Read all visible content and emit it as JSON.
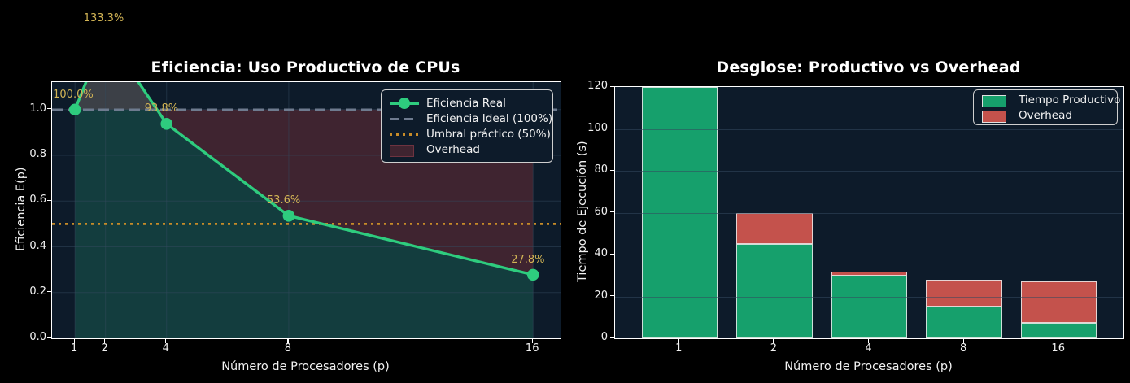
{
  "figure": {
    "bg_color": "#000000",
    "axes_bg_color": "#0d1b2a",
    "spine_color": "#ffffff",
    "grid_color": "rgba(52,73,94,0.5)",
    "annotation_color": "#d2b455"
  },
  "left_chart": {
    "title": "Eficiencia: Uso Productivo de CPUs",
    "xlabel": "Número de Procesadores (p)",
    "ylabel": "Eficiencia E(p)",
    "x_tick_labels": [
      "1",
      "2",
      "4",
      "8",
      "16"
    ],
    "y_tick_labels": [
      "0.0",
      "0.2",
      "0.4",
      "0.6",
      "0.8",
      "1.0"
    ],
    "legend_items": [
      {
        "label": "Eficiencia Real",
        "type": "line-marker",
        "color": "#2ecc7e"
      },
      {
        "label": "Eficiencia Ideal (100%)",
        "type": "dashed",
        "color": "#6e7b8f"
      },
      {
        "label": "Umbral práctico (50%)",
        "type": "dotted",
        "color": "#c88c28"
      },
      {
        "label": "Overhead",
        "type": "patch",
        "color": "#3f2430"
      }
    ]
  },
  "right_chart": {
    "title": "Desglose: Productivo vs Overhead",
    "xlabel": "Número de Procesadores (p)",
    "ylabel": "Tiempo de Ejecución (s)",
    "x_tick_labels": [
      "1",
      "2",
      "4",
      "8",
      "16"
    ],
    "y_tick_labels": [
      "0",
      "20",
      "40",
      "60",
      "80",
      "100",
      "120"
    ],
    "legend_items": [
      {
        "label": "Tiempo Productivo",
        "type": "patch",
        "color": "#16a06c"
      },
      {
        "label": "Overhead",
        "type": "patch",
        "color": "#c4524c"
      }
    ]
  },
  "chart_data": [
    {
      "type": "line",
      "title": "Eficiencia: Uso Productivo de CPUs",
      "xlabel": "Número de Procesadores (p)",
      "ylabel": "Eficiencia E(p)",
      "x": [
        1,
        2,
        4,
        8,
        16
      ],
      "series": [
        {
          "name": "Eficiencia Real",
          "values": [
            1.0,
            1.3333,
            0.9375,
            0.5357,
            0.2778
          ],
          "color": "#2ecc7e",
          "marker": "circle"
        }
      ],
      "point_labels": [
        "100.0%",
        "133.3%",
        "93.8%",
        "53.6%",
        "27.8%"
      ],
      "reference_lines": [
        {
          "name": "Eficiencia Ideal (100%)",
          "y": 1.0,
          "style": "dashed",
          "color": "#6e7b8f"
        },
        {
          "name": "Umbral práctico (50%)",
          "y": 0.5,
          "style": "dotted",
          "color": "#c88c28"
        }
      ],
      "fills": [
        {
          "region": "under_curve",
          "color": "#133d3e"
        },
        {
          "region": "curve_to_ideal_where_below_ideal",
          "color": "#3f2430"
        },
        {
          "region": "curve_to_ideal_where_above_ideal",
          "color": "#3c4047"
        }
      ],
      "xlim": [
        0.25,
        16.9
      ],
      "ylim": [
        0,
        1.12
      ],
      "x_ticks": [
        1,
        2,
        4,
        8,
        16
      ],
      "y_ticks": [
        0,
        0.2,
        0.4,
        0.6,
        0.8,
        1.0
      ],
      "grid": true,
      "legend_position": "upper right"
    },
    {
      "type": "bar",
      "title": "Desglose: Productivo vs Overhead",
      "xlabel": "Número de Procesadores (p)",
      "ylabel": "Tiempo de Ejecución (s)",
      "categories": [
        "1",
        "2",
        "4",
        "8",
        "16"
      ],
      "stacked": true,
      "series": [
        {
          "name": "Tiempo Productivo",
          "color": "#16a06c",
          "values": [
            120,
            45,
            30,
            15,
            7.5
          ]
        },
        {
          "name": "Overhead",
          "color": "#c4524c",
          "values": [
            0,
            15,
            2,
            13,
            19.5
          ]
        }
      ],
      "bar_totals": [
        120,
        60,
        32,
        28,
        27
      ],
      "ylim": [
        0,
        120
      ],
      "y_ticks": [
        0,
        20,
        40,
        60,
        80,
        100,
        120
      ],
      "grid": true,
      "legend_position": "upper right",
      "bar_edge_color": "#ebebeb"
    }
  ]
}
